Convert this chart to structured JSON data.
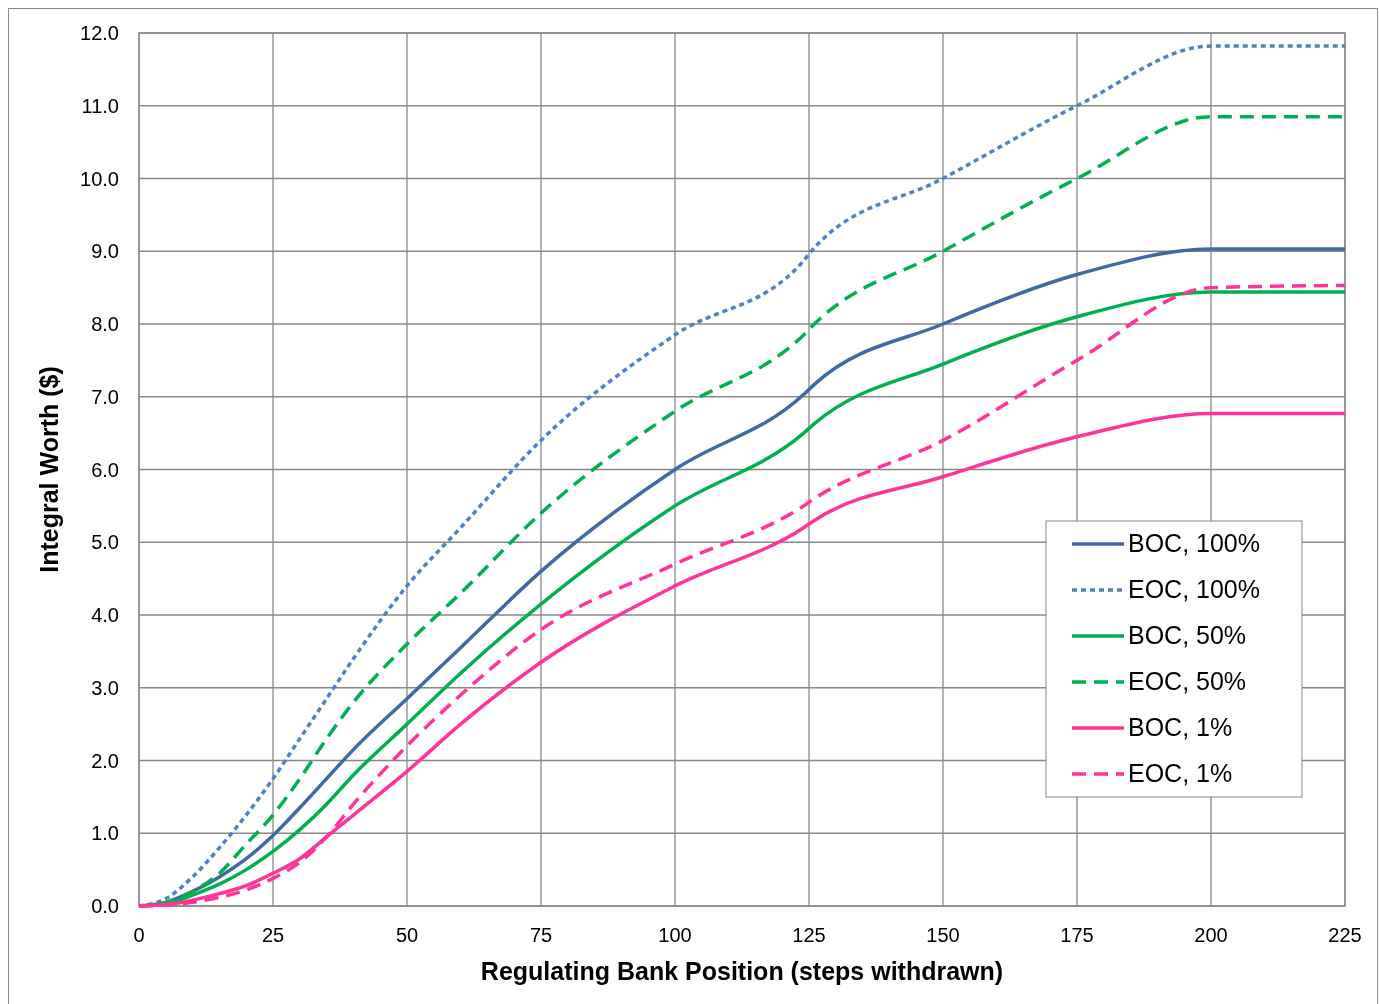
{
  "chart_data": {
    "type": "line",
    "xlabel": "Regulating Bank Position (steps withdrawn)",
    "ylabel": "Integral Worth ($)",
    "xlim": [
      0,
      225
    ],
    "xticks": [
      0,
      25,
      50,
      75,
      100,
      125,
      150,
      175,
      200,
      225
    ],
    "ylim": [
      0,
      12
    ],
    "yticks": [
      {
        "value": 0,
        "label": "0.0"
      },
      {
        "value": 1,
        "label": "1.0"
      },
      {
        "value": 2,
        "label": "2.0"
      },
      {
        "value": 3,
        "label": "3.0"
      },
      {
        "value": 4,
        "label": "4.0"
      },
      {
        "value": 5,
        "label": "5.0"
      },
      {
        "value": 6,
        "label": "6.0"
      },
      {
        "value": 7,
        "label": "7.0"
      },
      {
        "value": 8,
        "label": "8.0"
      },
      {
        "value": 9,
        "label": "9.0"
      },
      {
        "value": 10,
        "label": "10.0"
      },
      {
        "value": 11,
        "label": "11.0"
      },
      {
        "value": 12,
        "label": "12.0"
      }
    ],
    "grid": true,
    "legend": "right",
    "marker": "none",
    "x": [
      0,
      5,
      10,
      15,
      20,
      25,
      30,
      35,
      40,
      50,
      60,
      75,
      100,
      124,
      126,
      150,
      175,
      200,
      225
    ],
    "series": [
      {
        "name": "BOC, 100%",
        "color": "#3f6aa6",
        "line_style": "solid",
        "values": [
          0,
          0.05,
          0.2,
          0.4,
          0.65,
          0.97,
          1.35,
          1.75,
          2.15,
          2.85,
          3.55,
          4.6,
          6.0,
          7.03,
          7.17,
          8.0,
          8.68,
          9.03,
          9.03
        ]
      },
      {
        "name": "EOC, 100%",
        "color": "#4f81c7",
        "line_style": "dotted",
        "values": [
          0,
          0.1,
          0.4,
          0.8,
          1.25,
          1.75,
          2.3,
          2.85,
          3.4,
          4.4,
          5.2,
          6.4,
          7.85,
          8.87,
          9.05,
          10.0,
          11.0,
          11.82,
          11.82
        ]
      },
      {
        "name": "BOC, 50%",
        "color": "#00b050",
        "line_style": "solid",
        "values": [
          0,
          0.03,
          0.15,
          0.3,
          0.5,
          0.75,
          1.05,
          1.4,
          1.8,
          2.5,
          3.2,
          4.15,
          5.5,
          6.5,
          6.63,
          7.45,
          8.1,
          8.44,
          8.44
        ]
      },
      {
        "name": "EOC, 50%",
        "color": "#00b050",
        "line_style": "dashed",
        "values": [
          0,
          0.05,
          0.2,
          0.45,
          0.85,
          1.25,
          1.75,
          2.3,
          2.8,
          3.6,
          4.3,
          5.4,
          6.8,
          7.85,
          8.0,
          9.0,
          10.0,
          10.85,
          10.85
        ]
      },
      {
        "name": "BOC, 1%",
        "color": "#ff3399",
        "line_style": "solid",
        "values": [
          0,
          0.02,
          0.08,
          0.17,
          0.28,
          0.45,
          0.65,
          0.95,
          1.25,
          1.85,
          2.5,
          3.35,
          4.4,
          5.2,
          5.3,
          5.9,
          6.45,
          6.77,
          6.77
        ]
      },
      {
        "name": "EOC, 1%",
        "color": "#ff3399",
        "line_style": "dashed",
        "values": [
          0,
          0.01,
          0.05,
          0.12,
          0.22,
          0.38,
          0.6,
          0.95,
          1.4,
          2.2,
          2.9,
          3.8,
          4.7,
          5.5,
          5.6,
          6.4,
          7.5,
          8.5,
          8.53
        ]
      }
    ]
  }
}
